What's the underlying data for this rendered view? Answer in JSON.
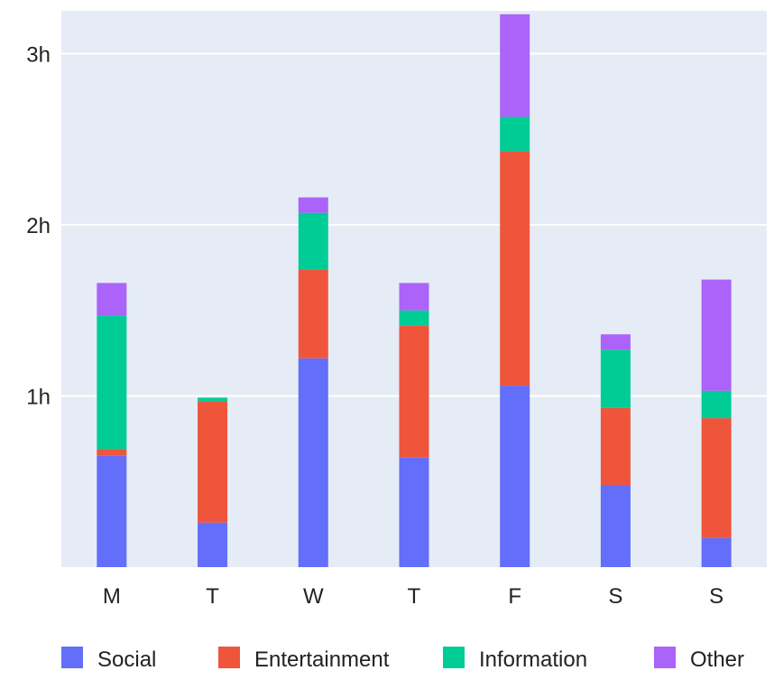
{
  "chart_data": {
    "type": "bar",
    "stacked": true,
    "categories": [
      "M",
      "T",
      "W",
      "T",
      "F",
      "S",
      "S"
    ],
    "y_unit": "hours",
    "ylim": [
      0,
      3.25
    ],
    "yticks": [
      {
        "value": 1,
        "label": "1h"
      },
      {
        "value": 2,
        "label": "2h"
      },
      {
        "value": 3,
        "label": "3h"
      }
    ],
    "grid": true,
    "legend_position": "bottom",
    "series": [
      {
        "name": "Social",
        "color": "#636efa",
        "values": [
          0.65,
          0.26,
          1.22,
          0.64,
          1.06,
          0.48,
          0.17
        ]
      },
      {
        "name": "Entertainment",
        "color": "#ef553b",
        "values": [
          0.04,
          0.71,
          0.52,
          0.77,
          1.37,
          0.45,
          0.7
        ]
      },
      {
        "name": "Information",
        "color": "#00cc96",
        "values": [
          0.78,
          0.02,
          0.33,
          0.09,
          0.2,
          0.34,
          0.16
        ]
      },
      {
        "name": "Other",
        "color": "#ab63fa",
        "values": [
          0.19,
          0.0,
          0.09,
          0.16,
          0.6,
          0.09,
          0.65
        ]
      }
    ]
  },
  "style": {
    "plot_background": "#e5ecf6",
    "grid_color": "#ffffff"
  }
}
